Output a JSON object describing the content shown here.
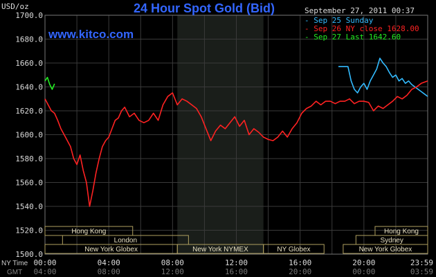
{
  "header": {
    "title": "24 Hour Spot Gold (Bid)",
    "unit_label": "USD/oz",
    "website": "www.kitco.com",
    "timestamp": "September 27, 2011 00:37"
  },
  "legend": [
    {
      "text": "Sep 25 Sunday",
      "color": "#33bbff"
    },
    {
      "text": "Sep 26 NY close 1628.00",
      "color": "#ff2222"
    },
    {
      "text": "Sep 27 Last 1642.60",
      "color": "#22ee22"
    }
  ],
  "sessions": {
    "row1": [
      {
        "label": "Hong Kong",
        "start": 0,
        "end": 5.5
      },
      {
        "label": "Hong Kong",
        "start": 20.7,
        "end": 24
      }
    ],
    "row2": [
      {
        "label": "London",
        "start": 1.1,
        "end": 9.0
      },
      {
        "label": "Sydney",
        "start": 19.5,
        "end": 24
      }
    ],
    "row3": [
      {
        "label": "New York Globex",
        "start": 0,
        "end": 8.3
      },
      {
        "label": "New York NYMEX",
        "start": 8.3,
        "end": 13.7
      },
      {
        "label": "NY Globex",
        "start": 13.7,
        "end": 17.5
      },
      {
        "label": "New York Globex",
        "start": 18.7,
        "end": 24
      }
    ]
  },
  "time_labels": {
    "ny_row_title": "NY Time",
    "gmt_row_title": "GMT",
    "ny": [
      "00:00",
      "04:00",
      "08:00",
      "12:00",
      "16:00",
      "20:00",
      "23:59"
    ],
    "gmt": [
      "04:00",
      "08:00",
      "12:00",
      "16:00",
      "20:00",
      "00:00",
      "03:59"
    ]
  },
  "colors": {
    "background": "#000000",
    "grid": "#3a3a3a",
    "nymex_shade": "#1a1e1a",
    "title": "#3366ff",
    "session_box_border": "#b0a060",
    "axis_text": "#dddddd"
  },
  "chart_data": {
    "type": "line",
    "title": "24 Hour Spot Gold (Bid)",
    "xlabel": "",
    "ylabel": "USD/oz",
    "x_unit": "hours NY time",
    "xlim": [
      0,
      24
    ],
    "ylim": [
      1500,
      1700
    ],
    "yticks": [
      "1500.0",
      "1520.0",
      "1540.0",
      "1560.0",
      "1580.0",
      "1600.0",
      "1620.0",
      "1640.0",
      "1660.0",
      "1680.0",
      "1700.0"
    ],
    "grid": true,
    "legend_position": "top-right",
    "series": [
      {
        "name": "Sep 25 Sunday",
        "color": "#33bbff",
        "x": [
          18.4,
          18.8,
          19.0,
          19.2,
          19.4,
          19.6,
          19.8,
          20.0,
          20.2,
          20.4,
          20.6,
          20.8,
          21.0,
          21.2,
          21.4,
          21.6,
          21.8,
          22.0,
          22.2,
          22.4,
          22.6,
          22.8,
          23.0,
          23.2,
          23.4,
          23.6,
          23.8,
          24.0
        ],
        "y": [
          1657,
          1657,
          1657,
          1645,
          1638,
          1635,
          1640,
          1643,
          1638,
          1645,
          1650,
          1655,
          1664,
          1660,
          1657,
          1652,
          1648,
          1650,
          1645,
          1647,
          1643,
          1645,
          1642,
          1640,
          1638,
          1636,
          1634,
          1632
        ]
      },
      {
        "name": "Sep 26 NY close 1628.00",
        "color": "#ff2222",
        "x": [
          0.0,
          0.2,
          0.4,
          0.6,
          0.8,
          1.0,
          1.2,
          1.4,
          1.6,
          1.8,
          2.0,
          2.2,
          2.4,
          2.6,
          2.8,
          3.0,
          3.2,
          3.4,
          3.6,
          3.8,
          4.0,
          4.2,
          4.4,
          4.6,
          4.8,
          5.0,
          5.3,
          5.6,
          5.9,
          6.2,
          6.5,
          6.8,
          7.1,
          7.4,
          7.7,
          8.0,
          8.3,
          8.6,
          8.9,
          9.2,
          9.5,
          9.8,
          10.1,
          10.4,
          10.7,
          11.0,
          11.3,
          11.6,
          11.9,
          12.2,
          12.5,
          12.8,
          13.1,
          13.4,
          13.7,
          14.0,
          14.3,
          14.6,
          14.9,
          15.2,
          15.5,
          15.8,
          16.1,
          16.4,
          16.7,
          17.0,
          17.3,
          17.6,
          17.9,
          18.2,
          18.5,
          18.8,
          19.1,
          19.4,
          19.7,
          20.0,
          20.3,
          20.6,
          20.9,
          21.2,
          21.5,
          21.8,
          22.1,
          22.4,
          22.7,
          23.0,
          23.3,
          23.6,
          24.0
        ],
        "y": [
          1630,
          1625,
          1620,
          1618,
          1612,
          1605,
          1600,
          1595,
          1590,
          1580,
          1575,
          1583,
          1570,
          1560,
          1540,
          1553,
          1568,
          1580,
          1590,
          1595,
          1598,
          1605,
          1612,
          1614,
          1620,
          1623,
          1615,
          1618,
          1612,
          1610,
          1612,
          1618,
          1612,
          1625,
          1632,
          1635,
          1625,
          1630,
          1628,
          1625,
          1622,
          1615,
          1605,
          1595,
          1603,
          1608,
          1605,
          1610,
          1615,
          1607,
          1612,
          1600,
          1605,
          1602,
          1598,
          1596,
          1595,
          1598,
          1603,
          1598,
          1605,
          1610,
          1618,
          1622,
          1624,
          1628,
          1625,
          1628,
          1628,
          1626,
          1628,
          1628,
          1630,
          1626,
          1628,
          1628,
          1627,
          1620,
          1624,
          1622,
          1625,
          1628,
          1632,
          1630,
          1633,
          1638,
          1640,
          1643,
          1645
        ]
      },
      {
        "name": "Sep 27 Last 1642.60",
        "color": "#22ee22",
        "x": [
          0.0,
          0.15,
          0.3,
          0.45,
          0.6
        ],
        "y": [
          1645,
          1648,
          1642,
          1638,
          1642.6
        ]
      }
    ]
  }
}
